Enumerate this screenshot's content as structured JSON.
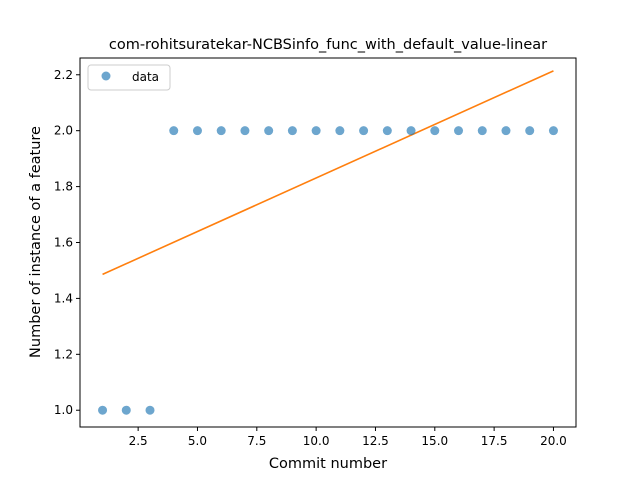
{
  "chart_data": {
    "type": "scatter",
    "title": "com-rohitsuratekar-NCBSinfo_func_with_default_value-linear",
    "xlabel": "Commit number",
    "ylabel": "Number of instance of a feature",
    "xlim": [
      0.05,
      20.95
    ],
    "ylim": [
      0.94,
      2.26
    ],
    "xticks": [
      2.5,
      5.0,
      7.5,
      10.0,
      12.5,
      15.0,
      17.5,
      20.0
    ],
    "xtick_labels": [
      "2.5",
      "5.0",
      "7.5",
      "10.0",
      "12.5",
      "15.0",
      "17.5",
      "20.0"
    ],
    "yticks": [
      1.0,
      1.2,
      1.4,
      1.6,
      1.8,
      2.0,
      2.2
    ],
    "ytick_labels": [
      "1.0",
      "1.2",
      "1.4",
      "1.6",
      "1.8",
      "2.0",
      "2.2"
    ],
    "grid": false,
    "legend": {
      "placement": "top-left",
      "entries": [
        "data"
      ]
    },
    "series": [
      {
        "name": "data",
        "kind": "scatter",
        "color": "#1f77b4",
        "x": [
          1,
          2,
          3,
          4,
          5,
          6,
          7,
          8,
          9,
          10,
          11,
          12,
          13,
          14,
          15,
          16,
          17,
          18,
          19,
          20
        ],
        "y": [
          1,
          1,
          1,
          2,
          2,
          2,
          2,
          2,
          2,
          2,
          2,
          2,
          2,
          2,
          2,
          2,
          2,
          2,
          2,
          2
        ]
      },
      {
        "kind": "line",
        "color": "#ff7f0e",
        "x": [
          1,
          20
        ],
        "y": [
          1.486,
          2.214
        ]
      }
    ]
  }
}
